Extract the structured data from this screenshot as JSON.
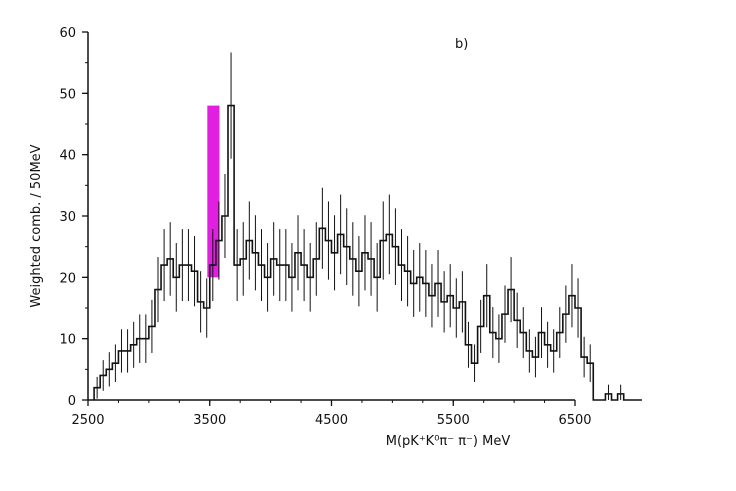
{
  "chart_data": {
    "type": "bar",
    "panel_label": "b)",
    "xlabel": "M(pK⁺K⁰π⁻ π⁻) MeV",
    "ylabel": "Weighted comb. / 50MeV",
    "xlim": [
      2500,
      6500
    ],
    "ylim": [
      0,
      60
    ],
    "x_ticks": [
      "2500",
      "3500",
      "4500",
      "5500",
      "6500"
    ],
    "y_ticks": [
      "0",
      "10",
      "20",
      "30",
      "40",
      "50",
      "60"
    ],
    "bin_width": 50,
    "bin_edges_start": 2550,
    "values": [
      2,
      4,
      5,
      6,
      8,
      8,
      9,
      10,
      10,
      12,
      18,
      22,
      23,
      20,
      22,
      22,
      21,
      16,
      15,
      22,
      26,
      30,
      48,
      22,
      23,
      26,
      24,
      22,
      20,
      23,
      22,
      22,
      20,
      24,
      22,
      20,
      23,
      28,
      26,
      24,
      27,
      25,
      23,
      21,
      24,
      23,
      20,
      26,
      27,
      25,
      22,
      21,
      19,
      20,
      19,
      17,
      19,
      16,
      17,
      15,
      16,
      9,
      6,
      12,
      17,
      11,
      10,
      14,
      18,
      13,
      11,
      8,
      7,
      11,
      9,
      8,
      11,
      14,
      17,
      15,
      7,
      6,
      0,
      0,
      1,
      0,
      1,
      0,
      0,
      0
    ],
    "highlight": {
      "color": "#e01fe0",
      "x_range": [
        3480,
        3580
      ],
      "y_base": 20,
      "y_top": 48
    },
    "error_bar_color": "#111111",
    "line_color": "#111111",
    "grid": false
  }
}
